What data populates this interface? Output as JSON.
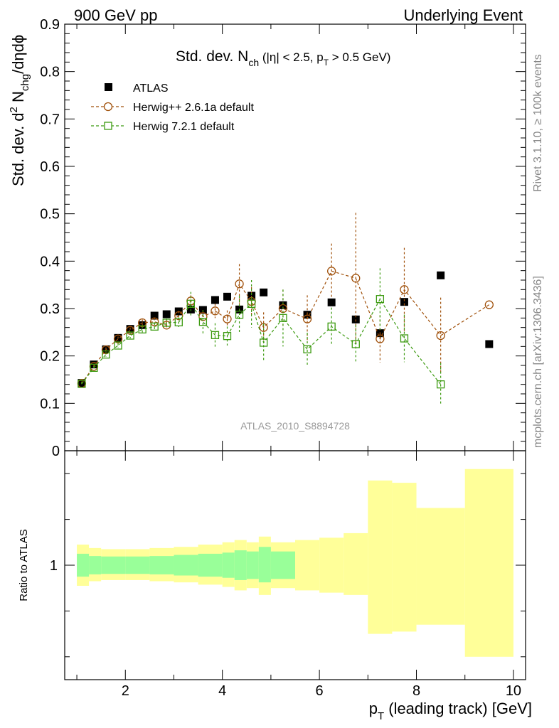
{
  "header": {
    "left": "900 GeV pp",
    "right": "Underlying Event"
  },
  "side_labels": {
    "rivet": "Rivet 3.1.10, ≥ 100k events",
    "mcplots": "mcplots.cern.ch [arXiv:1306.3436]"
  },
  "watermark": "ATLAS_2010_S8894728",
  "chart_data": {
    "type": "scatter",
    "title": {
      "main": "Std. dev. N",
      "sub": "ch",
      "tail_a": " (|η| < 2.5, p",
      "tail_sub": "T",
      "tail_b": " > 0.5 GeV)"
    },
    "ylabel": {
      "a": "Std. dev. d",
      "sup": "2",
      "b": " N",
      "sub": "chg",
      "c": "/dηdϕ"
    },
    "xlabel": {
      "a": "p",
      "sub": "T",
      "b": " (leading track) [GeV]"
    },
    "ratio_ylabel": "Ratio to ATLAS",
    "xlim": [
      0.75,
      10.25
    ],
    "ylim": [
      0,
      0.9
    ],
    "xticks": [
      2,
      4,
      6,
      8,
      10
    ],
    "yticks": [
      0,
      0.1,
      0.2,
      0.3,
      0.4,
      0.5,
      0.6,
      0.7,
      0.8,
      0.9
    ],
    "ytick_labels": [
      "0",
      "0.1",
      "0.2",
      "0.3",
      "0.4",
      "0.5",
      "0.6",
      "0.7",
      "0.8",
      "0.9"
    ],
    "ratio_ylim": [
      0.5,
      1.5
    ],
    "ratio_yticks": [
      1
    ],
    "ratio_ytick_labels": [
      "1"
    ],
    "legend_position": "top-left",
    "series": [
      {
        "name": "ATLAS",
        "style": "data",
        "color": "#000000",
        "x": [
          1.1,
          1.35,
          1.6,
          1.85,
          2.1,
          2.35,
          2.6,
          2.85,
          3.1,
          3.35,
          3.6,
          3.85,
          4.1,
          4.35,
          4.6,
          4.85,
          5.25,
          5.75,
          6.25,
          6.75,
          7.25,
          7.75,
          8.5,
          9.5
        ],
        "y": [
          0.143,
          0.182,
          0.214,
          0.238,
          0.257,
          0.265,
          0.285,
          0.288,
          0.294,
          0.298,
          0.297,
          0.318,
          0.325,
          0.298,
          0.327,
          0.334,
          0.307,
          0.287,
          0.313,
          0.277,
          0.248,
          0.314,
          0.37,
          0.225
        ]
      },
      {
        "name": "Herwig++ 2.6.1a default",
        "style": "circle",
        "color": "#a0500a",
        "x": [
          1.1,
          1.35,
          1.6,
          1.85,
          2.1,
          2.35,
          2.6,
          2.85,
          3.1,
          3.35,
          3.6,
          3.85,
          4.1,
          4.35,
          4.6,
          4.85,
          5.25,
          5.75,
          6.25,
          6.75,
          7.25,
          7.75,
          8.5,
          9.5
        ],
        "y": [
          0.142,
          0.178,
          0.213,
          0.236,
          0.254,
          0.27,
          0.272,
          0.265,
          0.285,
          0.316,
          0.283,
          0.295,
          0.278,
          0.352,
          0.315,
          0.26,
          0.3,
          0.278,
          0.379,
          0.364,
          0.236,
          0.34,
          0.243,
          0.308
        ],
        "err": [
          0.004,
          0.004,
          0.005,
          0.005,
          0.006,
          0.007,
          0.008,
          0.009,
          0.01,
          0.012,
          0.014,
          0.015,
          0.018,
          0.042,
          0.03,
          0.032,
          0.04,
          0.05,
          0.058,
          0.138,
          0.05,
          0.088,
          0.08,
          0
        ]
      },
      {
        "name": "Herwig 7.2.1 default",
        "style": "square",
        "color": "#3c9a10",
        "x": [
          1.1,
          1.35,
          1.6,
          1.85,
          2.1,
          2.35,
          2.6,
          2.85,
          3.1,
          3.35,
          3.6,
          3.85,
          4.1,
          4.35,
          4.6,
          4.85,
          5.25,
          5.75,
          6.25,
          6.75,
          7.25,
          7.75,
          8.5
        ],
        "y": [
          0.141,
          0.175,
          0.203,
          0.222,
          0.243,
          0.256,
          0.262,
          0.27,
          0.271,
          0.31,
          0.272,
          0.244,
          0.242,
          0.287,
          0.31,
          0.228,
          0.28,
          0.214,
          0.262,
          0.225,
          0.32,
          0.237,
          0.14
        ],
        "err": [
          0.004,
          0.004,
          0.005,
          0.005,
          0.006,
          0.007,
          0.008,
          0.009,
          0.01,
          0.025,
          0.025,
          0.025,
          0.02,
          0.04,
          0.05,
          0.04,
          0.06,
          0.035,
          0.04,
          0.04,
          0.065,
          0.05,
          0.045
        ]
      }
    ],
    "ratio_bands": {
      "description": "MC uncertainty bands in ratio panel",
      "bins": [
        {
          "lo": 1.0,
          "hi": 1.25,
          "yellow": [
            0.91,
            1.09
          ],
          "green": [
            0.95,
            1.05
          ]
        },
        {
          "lo": 1.25,
          "hi": 1.5,
          "yellow": [
            0.93,
            1.075
          ],
          "green": [
            0.96,
            1.04
          ]
        },
        {
          "lo": 1.5,
          "hi": 2.0,
          "yellow": [
            0.935,
            1.07
          ],
          "green": [
            0.962,
            1.038
          ]
        },
        {
          "lo": 2.0,
          "hi": 2.5,
          "yellow": [
            0.935,
            1.07
          ],
          "green": [
            0.962,
            1.038
          ]
        },
        {
          "lo": 2.5,
          "hi": 3.0,
          "yellow": [
            0.93,
            1.075
          ],
          "green": [
            0.96,
            1.04
          ]
        },
        {
          "lo": 3.0,
          "hi": 3.5,
          "yellow": [
            0.925,
            1.08
          ],
          "green": [
            0.955,
            1.045
          ]
        },
        {
          "lo": 3.5,
          "hi": 4.0,
          "yellow": [
            0.915,
            1.09
          ],
          "green": [
            0.95,
            1.05
          ]
        },
        {
          "lo": 4.0,
          "hi": 4.25,
          "yellow": [
            0.905,
            1.1
          ],
          "green": [
            0.945,
            1.055
          ]
        },
        {
          "lo": 4.25,
          "hi": 4.5,
          "yellow": [
            0.89,
            1.11
          ],
          "green": [
            0.935,
            1.065
          ]
        },
        {
          "lo": 4.5,
          "hi": 4.75,
          "yellow": [
            0.9,
            1.1
          ],
          "green": [
            0.94,
            1.06
          ]
        },
        {
          "lo": 4.75,
          "hi": 5.0,
          "yellow": [
            0.87,
            1.125
          ],
          "green": [
            0.925,
            1.08
          ]
        },
        {
          "lo": 5.0,
          "hi": 5.5,
          "yellow": [
            0.9,
            1.1
          ],
          "green": [
            0.94,
            1.06
          ]
        },
        {
          "lo": 5.5,
          "hi": 6.0,
          "yellow": [
            0.89,
            1.11
          ],
          "green": null
        },
        {
          "lo": 6.0,
          "hi": 6.5,
          "yellow": [
            0.88,
            1.12
          ],
          "green": null
        },
        {
          "lo": 6.5,
          "hi": 7.0,
          "yellow": [
            0.87,
            1.14
          ],
          "green": null
        },
        {
          "lo": 7.0,
          "hi": 7.5,
          "yellow": [
            0.7,
            1.37
          ],
          "green": null
        },
        {
          "lo": 7.5,
          "hi": 8.0,
          "yellow": [
            0.71,
            1.36
          ],
          "green": null
        },
        {
          "lo": 8.0,
          "hi": 9.0,
          "yellow": [
            0.74,
            1.25
          ],
          "green": null
        },
        {
          "lo": 9.0,
          "hi": 10.0,
          "yellow": [
            0.6,
            1.42
          ],
          "green": null
        }
      ]
    }
  }
}
